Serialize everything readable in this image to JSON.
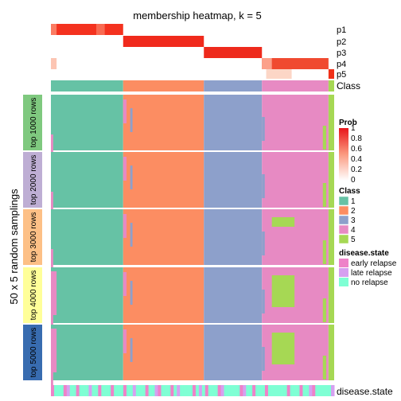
{
  "chart_data": {
    "type": "heatmap",
    "title": "membership heatmap, k = 5",
    "ylabel": "50 x 5 random samplings",
    "prob_rows": [
      "p1",
      "p2",
      "p3",
      "p4",
      "p5"
    ],
    "class_row_label": "Class",
    "disease_row_label": "disease.state",
    "groups": [
      "top 1000 rows",
      "top 2000 rows",
      "top 3000 rows",
      "top 4000 rows",
      "top 5000 rows"
    ],
    "group_colors": [
      "#7fc97f",
      "#beaed4",
      "#fdc086",
      "#ffff99",
      "#386cb0"
    ],
    "class_segments": [
      {
        "class": "1",
        "start": 0.0,
        "end": 0.255
      },
      {
        "class": "2",
        "start": 0.255,
        "end": 0.54
      },
      {
        "class": "3",
        "start": 0.54,
        "end": 0.745
      },
      {
        "class": "4",
        "start": 0.745,
        "end": 0.98
      },
      {
        "class": "5",
        "start": 0.98,
        "end": 1.0
      }
    ],
    "legend_prob": {
      "title": "Prob",
      "ticks": [
        "1",
        "0.8",
        "0.6",
        "0.4",
        "0.2",
        "0"
      ]
    },
    "legend_class": {
      "title": "Class",
      "items": [
        {
          "label": "1",
          "color": "#66c2a5"
        },
        {
          "label": "2",
          "color": "#fc8d62"
        },
        {
          "label": "3",
          "color": "#8da0cb"
        },
        {
          "label": "4",
          "color": "#e78ac3"
        },
        {
          "label": "5",
          "color": "#a6d854"
        }
      ]
    },
    "legend_disease": {
      "title": "disease.state",
      "items": [
        {
          "label": "early relapse",
          "color": "#ee82c8"
        },
        {
          "label": "late relapse",
          "color": "#d6a0f0"
        },
        {
          "label": "no relapse",
          "color": "#7fffd4"
        }
      ]
    }
  }
}
